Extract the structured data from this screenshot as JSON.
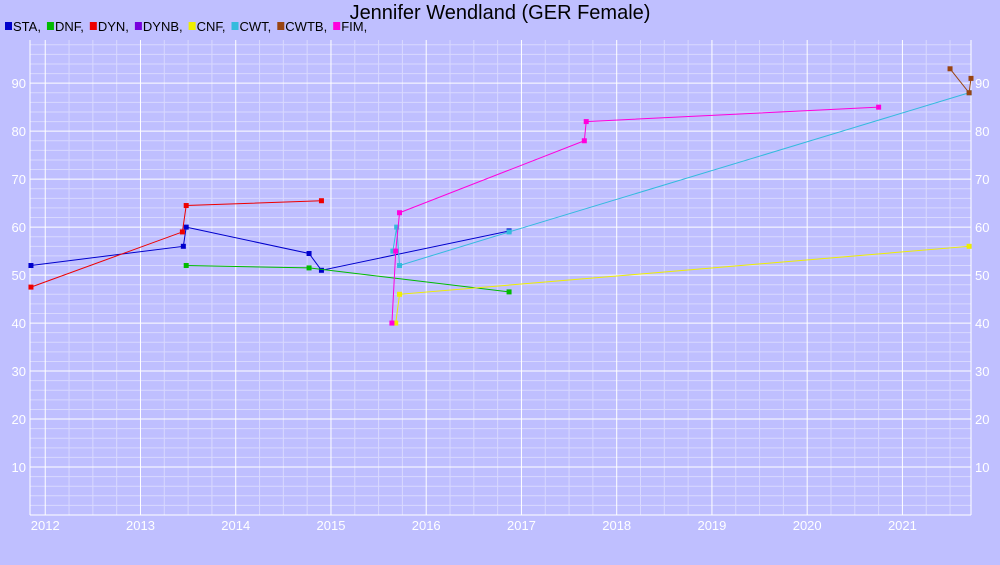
{
  "chart_data": {
    "type": "line",
    "title": "Jennifer Wendland (GER Female)",
    "xlabel": "",
    "ylabel": "",
    "xlim": [
      2011.84,
      2021.72
    ],
    "ylim": [
      0,
      99
    ],
    "x_ticks": [
      {
        "value": 2012,
        "label": "2012"
      },
      {
        "value": 2013,
        "label": "2013"
      },
      {
        "value": 2014,
        "label": "2014"
      },
      {
        "value": 2015,
        "label": "2015"
      },
      {
        "value": 2016,
        "label": "2016"
      },
      {
        "value": 2017,
        "label": "2017"
      },
      {
        "value": 2018,
        "label": "2018"
      },
      {
        "value": 2019,
        "label": "2019"
      },
      {
        "value": 2020,
        "label": "2020"
      },
      {
        "value": 2021,
        "label": "2021"
      }
    ],
    "y_ticks": [
      {
        "value": 10,
        "label": "10"
      },
      {
        "value": 20,
        "label": "20"
      },
      {
        "value": 30,
        "label": "30"
      },
      {
        "value": 40,
        "label": "40"
      },
      {
        "value": 50,
        "label": "50"
      },
      {
        "value": 60,
        "label": "60"
      },
      {
        "value": 70,
        "label": "70"
      },
      {
        "value": 80,
        "label": "80"
      },
      {
        "value": 90,
        "label": "90"
      }
    ],
    "grid": true,
    "legend_position": "top-left",
    "series": [
      {
        "name": "STA,",
        "color": "#0000cc",
        "points": [
          [
            2011.85,
            52
          ],
          [
            2013.45,
            56
          ],
          [
            2013.48,
            60
          ],
          [
            2014.77,
            54.5
          ],
          [
            2014.9,
            51
          ],
          [
            2016.87,
            59.2
          ]
        ]
      },
      {
        "name": "DNF,",
        "color": "#00bb00",
        "points": [
          [
            2013.48,
            52
          ],
          [
            2014.77,
            51.5
          ],
          [
            2016.87,
            46.5
          ]
        ]
      },
      {
        "name": "DYN,",
        "color": "#ee0000",
        "points": [
          [
            2011.85,
            47.5
          ],
          [
            2013.44,
            59
          ],
          [
            2013.48,
            64.5
          ],
          [
            2014.9,
            65.5
          ]
        ]
      },
      {
        "name": "DYNB,",
        "color": "#7700dd",
        "points": []
      },
      {
        "name": "CNF,",
        "color": "#eeee00",
        "points": [
          [
            2015.68,
            40
          ],
          [
            2015.72,
            46
          ],
          [
            2021.7,
            56
          ]
        ]
      },
      {
        "name": "CWT,",
        "color": "#33bbdd",
        "points": [
          [
            2015.65,
            55
          ],
          [
            2015.69,
            60
          ],
          [
            2015.72,
            52
          ],
          [
            2016.87,
            59
          ],
          [
            2021.7,
            88
          ]
        ]
      },
      {
        "name": "CWTB,",
        "color": "#994411",
        "points": [
          [
            2021.5,
            93
          ],
          [
            2021.7,
            88
          ],
          [
            2021.72,
            91
          ]
        ]
      },
      {
        "name": "FIM,",
        "color": "#ff00dd",
        "points": [
          [
            2015.64,
            40
          ],
          [
            2015.68,
            55
          ],
          [
            2015.72,
            63
          ],
          [
            2017.66,
            78
          ],
          [
            2017.68,
            82
          ],
          [
            2020.75,
            85
          ]
        ]
      }
    ]
  }
}
